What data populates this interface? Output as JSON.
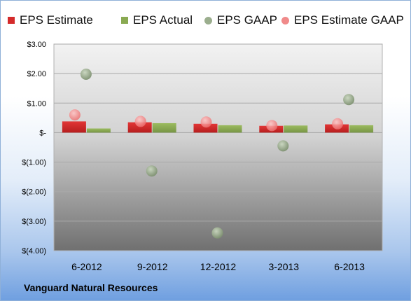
{
  "chart_data": {
    "type": "bar",
    "title": "",
    "xlabel": "",
    "ylabel": "",
    "categories": [
      "6-2012",
      "9-2012",
      "12-2012",
      "3-2013",
      "6-2013"
    ],
    "ylim": [
      -4,
      3
    ],
    "yticks": [
      3,
      2,
      1,
      0,
      -1,
      -2,
      -3,
      -4
    ],
    "ytick_labels": [
      "$3.00",
      "$2.00",
      "$1.00",
      "$-",
      "$(1.00)",
      "$(2.00)",
      "$(3.00)",
      "$(4.00)"
    ],
    "grid": true,
    "legend_position": "top",
    "series": [
      {
        "name": "EPS Estimate",
        "kind": "bar",
        "color": "#d42a2a",
        "values": [
          0.38,
          0.35,
          0.3,
          0.23,
          0.28
        ]
      },
      {
        "name": "EPS Actual",
        "kind": "bar",
        "color": "#8aaa52",
        "values": [
          0.14,
          0.32,
          0.25,
          0.24,
          0.25
        ]
      },
      {
        "name": "EPS GAAP",
        "kind": "scatter",
        "color": "#9bae8e",
        "values": [
          1.98,
          -1.3,
          -3.4,
          -0.45,
          1.12
        ]
      },
      {
        "name": "EPS Estimate GAAP",
        "kind": "scatter",
        "color": "#f08a8a",
        "values": [
          0.6,
          0.38,
          0.36,
          0.24,
          0.3
        ]
      }
    ]
  },
  "footer": {
    "company": "Vanguard Natural Resources"
  }
}
